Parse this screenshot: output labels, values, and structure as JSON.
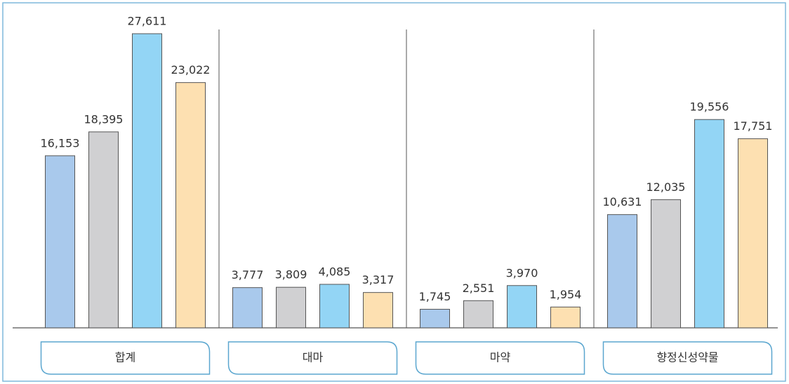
{
  "chart_data": {
    "type": "bar",
    "categories": [
      "합계",
      "대마",
      "마약",
      "향정신성약물"
    ],
    "series": [
      {
        "color": "#a9c9ec",
        "values": [
          16153,
          3777,
          1745,
          10631
        ],
        "value_labels": [
          "16,153",
          "3,777",
          "1,745",
          "10,631"
        ]
      },
      {
        "color": "#d0d0d2",
        "values": [
          18395,
          3809,
          2551,
          12035
        ],
        "value_labels": [
          "18,395",
          "3,809",
          "2,551",
          "12,035"
        ]
      },
      {
        "color": "#93d5f5",
        "values": [
          27611,
          4085,
          3970,
          19556
        ],
        "value_labels": [
          "27,611",
          "4,085",
          "3,970",
          "19,556"
        ]
      },
      {
        "color": "#fde0b1",
        "values": [
          23022,
          3317,
          1954,
          17751
        ],
        "value_labels": [
          "23,022",
          "3,317",
          "1,954",
          "17,751"
        ]
      }
    ]
  }
}
